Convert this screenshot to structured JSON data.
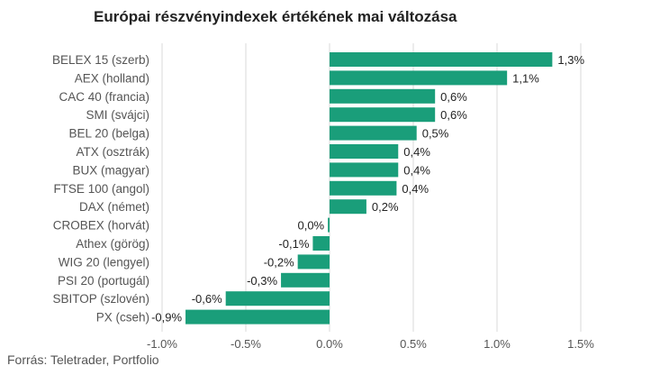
{
  "chart_data": {
    "type": "bar",
    "orientation": "horizontal",
    "title": "Európai részvényindexek értékének mai változása",
    "categories": [
      "BELEX 15 (szerb)",
      "AEX (holland)",
      "CAC 40 (francia)",
      "SMI (svájci)",
      "BEL 20 (belga)",
      "ATX (osztrák)",
      "BUX (magyar)",
      "FTSE 100 (angol)",
      "DAX (német)",
      "CROBEX (horvát)",
      "Athex (görög)",
      "WIG 20 (lengyel)",
      "PSI 20 (portugál)",
      "SBITOP (szlovén)",
      "PX (cseh)"
    ],
    "values": [
      1.33,
      1.06,
      0.63,
      0.63,
      0.52,
      0.41,
      0.41,
      0.4,
      0.22,
      -0.01,
      -0.1,
      -0.19,
      -0.29,
      -0.62,
      -0.86
    ],
    "value_labels": [
      "1,3%",
      "1,1%",
      "0,6%",
      "0,6%",
      "0,5%",
      "0,4%",
      "0,4%",
      "0,4%",
      "0,2%",
      "0,0%",
      "-0,1%",
      "-0,2%",
      "-0,3%",
      "-0,6%",
      "-0,9%"
    ],
    "xlim": [
      -1.0,
      1.5
    ],
    "xticks": [
      -1.0,
      -0.5,
      0.0,
      0.5,
      1.0,
      1.5
    ],
    "xtick_labels": [
      "-1,0%",
      "-0,5%",
      "0,0%",
      "0,5%",
      "1,0%",
      "1,5%"
    ],
    "xlabel": "",
    "ylabel": "",
    "grid": true,
    "bar_color": "#1a9e7a",
    "source": "Forrás: Teletrader, Portfolio"
  }
}
